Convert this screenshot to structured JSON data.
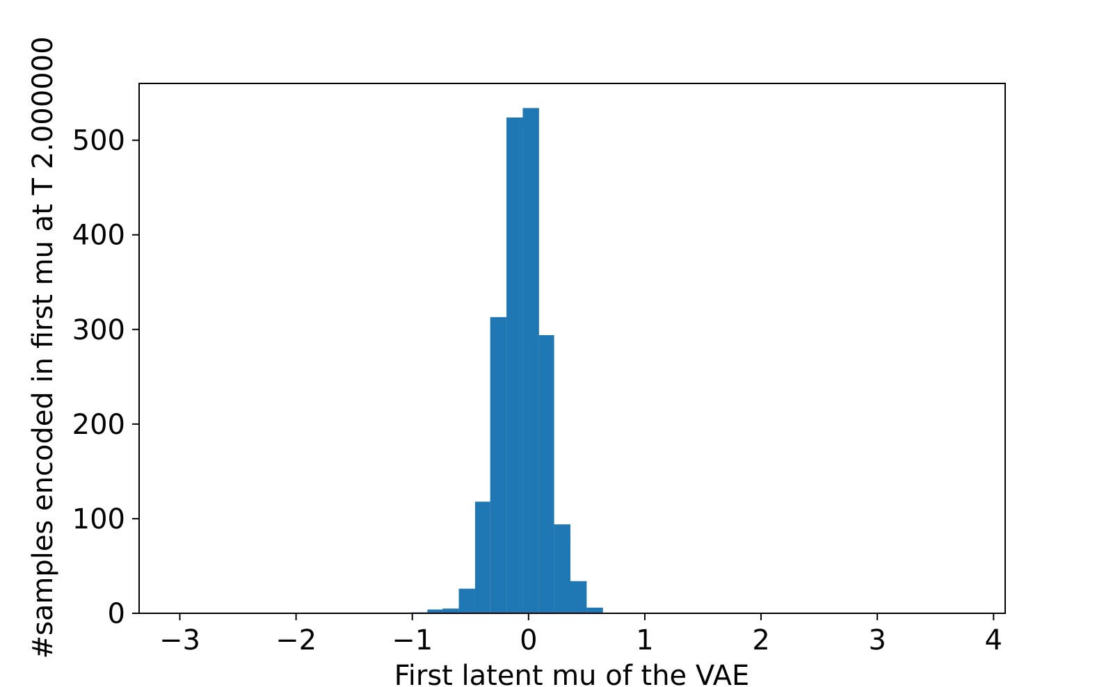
{
  "chart_data": {
    "type": "bar",
    "title": "",
    "xlabel": "First latent mu of the VAE",
    "ylabel": "#samples encoded in first mu at T 2.000000",
    "xlim": [
      -3.35,
      4.1
    ],
    "ylim": [
      0,
      560
    ],
    "grid": false,
    "bar_color": "#1f77b4",
    "x_ticks": [
      -3,
      -2,
      -1,
      0,
      1,
      2,
      3,
      4
    ],
    "x_tick_labels": [
      "−3",
      "−2",
      "−1",
      "0",
      "1",
      "2",
      "3",
      "4"
    ],
    "y_ticks": [
      0,
      100,
      200,
      300,
      400,
      500
    ],
    "y_tick_labels": [
      "0",
      "100",
      "200",
      "300",
      "400",
      "500"
    ],
    "bins": [
      {
        "x0": -1.01,
        "x1": -0.87,
        "count": 1
      },
      {
        "x0": -0.87,
        "x1": -0.74,
        "count": 4
      },
      {
        "x0": -0.74,
        "x1": -0.6,
        "count": 5
      },
      {
        "x0": -0.6,
        "x1": -0.46,
        "count": 26
      },
      {
        "x0": -0.46,
        "x1": -0.33,
        "count": 118
      },
      {
        "x0": -0.33,
        "x1": -0.19,
        "count": 313
      },
      {
        "x0": -0.19,
        "x1": -0.05,
        "count": 524
      },
      {
        "x0": -0.05,
        "x1": 0.09,
        "count": 534
      },
      {
        "x0": 0.09,
        "x1": 0.22,
        "count": 294
      },
      {
        "x0": 0.22,
        "x1": 0.36,
        "count": 94
      },
      {
        "x0": 0.36,
        "x1": 0.5,
        "count": 34
      },
      {
        "x0": 0.5,
        "x1": 0.64,
        "count": 6
      }
    ]
  }
}
